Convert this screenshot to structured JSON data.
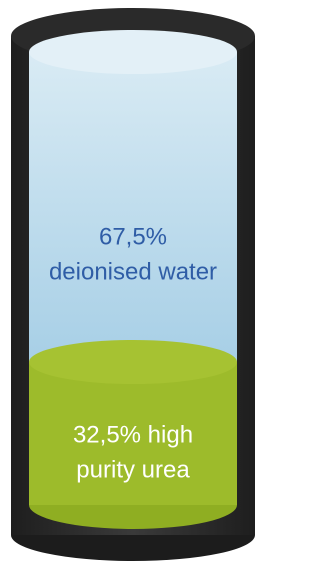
{
  "segments": [
    {
      "lines": [
        "67,5%",
        "deionised water"
      ]
    },
    {
      "lines": [
        "32,5% high",
        "purity urea"
      ]
    }
  ]
}
